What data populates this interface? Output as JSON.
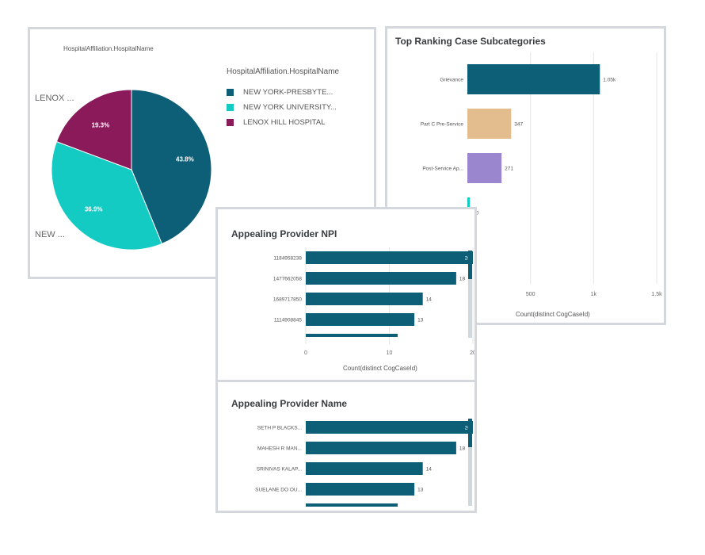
{
  "colors": {
    "teal_dark": "#0d5f78",
    "teal_light": "#14cbc4",
    "maroon": "#8a1a5a",
    "tan": "#e3bd8d",
    "purple": "#9a86cf",
    "axis_grid": "#e6e6e6",
    "panel_border": "#d4d8dc"
  },
  "pie_panel": {
    "subtitle": "HospitalAffiliation.HospitalName",
    "legend_title": "HospitalAffiliation.HospitalName",
    "outer_labels": [
      "LENOX ...",
      "NEW ..."
    ]
  },
  "rank_panel": {
    "title": "Top Ranking Case Subcategories",
    "xlabel": "Count(distinct CogCaseId)"
  },
  "npi_panel": {
    "title": "Appealing Provider NPI",
    "xlabel": "Count(distinct CogCaseId)"
  },
  "name_panel": {
    "title": "Appealing Provider Name"
  },
  "chart_data": [
    {
      "type": "pie",
      "title": "HospitalAffiliation.HospitalName",
      "slices": [
        {
          "label": "NEW YORK-PRESBYTE...",
          "value": 43.8,
          "display": "43.8%",
          "color": "#0d5f78"
        },
        {
          "label": "NEW YORK UNIVERSITY...",
          "value": 36.9,
          "display": "36.9%",
          "color": "#14cbc4"
        },
        {
          "label": "LENOX HILL HOSPITAL",
          "value": 19.3,
          "display": "19.3%",
          "color": "#8a1a5a"
        }
      ],
      "legend_placement": "right"
    },
    {
      "type": "bar",
      "orientation": "horizontal",
      "title": "Top Ranking Case Subcategories",
      "xlabel": "Count(distinct CogCaseId)",
      "categories": [
        "Grievance",
        "Part C Pre-Service",
        "Post-Service Ap...",
        ""
      ],
      "values": [
        1050,
        347,
        271,
        20
      ],
      "value_labels": [
        "1.05k",
        "347",
        "271",
        "20"
      ],
      "colors": [
        "#0d5f78",
        "#e3bd8d",
        "#9a86cf",
        "#14cbc4"
      ],
      "xlim": [
        0,
        1500
      ],
      "xticks": [
        500,
        1000,
        1500
      ],
      "xtick_labels": [
        "500",
        "1k",
        "1.5k"
      ],
      "grid": true
    },
    {
      "type": "bar",
      "orientation": "horizontal",
      "title": "Appealing Provider NPI",
      "xlabel": "Count(distinct CogCaseId)",
      "categories": [
        "1184958238",
        "1477662058",
        "1689717850",
        "1114908845",
        ""
      ],
      "values": [
        20,
        18,
        14,
        13,
        11
      ],
      "value_labels": [
        "20",
        "18",
        "14",
        "13",
        ""
      ],
      "color": "#0d5f78",
      "xlim": [
        0,
        20
      ],
      "xticks": [
        0,
        10,
        20
      ],
      "xtick_labels": [
        "0",
        "10",
        "20"
      ],
      "grid": true
    },
    {
      "type": "bar",
      "orientation": "horizontal",
      "title": "Appealing Provider Name",
      "categories": [
        "SETH P BLACKS...",
        "MAHESH R MAN...",
        "SRINIVAS KALAP...",
        "SUELANE DO OU...",
        ""
      ],
      "values": [
        20,
        18,
        14,
        13,
        11
      ],
      "value_labels": [
        "20",
        "18",
        "14",
        "13",
        ""
      ],
      "color": "#0d5f78",
      "xlim": [
        0,
        20
      ],
      "grid": true
    }
  ]
}
